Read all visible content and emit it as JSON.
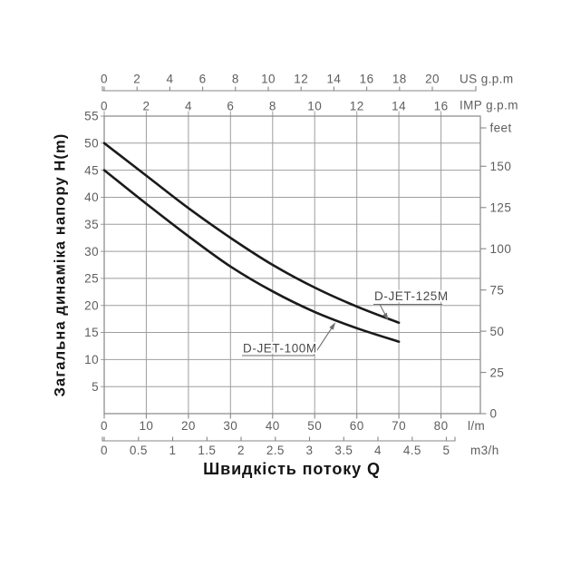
{
  "page": {
    "background": "#ffffff"
  },
  "colors": {
    "grid": "#9e9e9e",
    "frame": "#878787",
    "axis_line": "#878787",
    "tick_text": "#5e5e5e",
    "curve": "#1a1a1a",
    "annotation_line": "#6e6e6e",
    "title_text": "#141414"
  },
  "chart_data": {
    "type": "line",
    "title": "",
    "xlabel": "Швидкість потоку Q",
    "ylabel": "Загальна динаміка напору H(m)",
    "grid": true,
    "x_axes": [
      {
        "id": "us-gpm",
        "label": "US g.p.m",
        "ticks": [
          0,
          2,
          4,
          6,
          8,
          10,
          12,
          14,
          16,
          18,
          20
        ]
      },
      {
        "id": "imp-gpm",
        "label": "IMP g.p.m",
        "ticks": [
          0,
          2,
          4,
          6,
          8,
          10,
          12,
          14,
          16
        ]
      },
      {
        "id": "l-m",
        "label": "l/m",
        "ticks": [
          0,
          10,
          20,
          30,
          40,
          50,
          60,
          70,
          80
        ]
      },
      {
        "id": "m3-h",
        "label": "m3/h",
        "ticks": [
          0,
          0.5,
          1,
          1.5,
          2,
          2.5,
          3,
          3.5,
          4,
          4.5,
          5
        ]
      }
    ],
    "y_axes": [
      {
        "id": "h-m",
        "label": "H(m)",
        "range": [
          0,
          55
        ],
        "step": 5,
        "tick_labels": [
          55,
          50,
          45,
          40,
          35,
          30,
          25,
          20,
          15,
          10,
          5
        ]
      },
      {
        "id": "feet",
        "label": "feet",
        "ticks": [
          150,
          125,
          100,
          75,
          50,
          25,
          0
        ]
      }
    ],
    "series": [
      {
        "name": "D-JET-125M",
        "x_lm": [
          0,
          10,
          20,
          30,
          40,
          50,
          60,
          70
        ],
        "h_m": [
          50,
          44,
          38,
          32.5,
          27.5,
          23.3,
          19.8,
          16.8
        ]
      },
      {
        "name": "D-JET-100M",
        "x_lm": [
          0,
          10,
          20,
          30,
          40,
          50,
          60,
          70
        ],
        "h_m": [
          45,
          38.8,
          32.8,
          27.2,
          22.6,
          18.8,
          15.8,
          13.3
        ]
      }
    ],
    "annotations": [
      {
        "text": "D-JET-125M",
        "target_series": "D-JET-125M"
      },
      {
        "text": "D-JET-100M",
        "target_series": "D-JET-100M"
      }
    ]
  }
}
